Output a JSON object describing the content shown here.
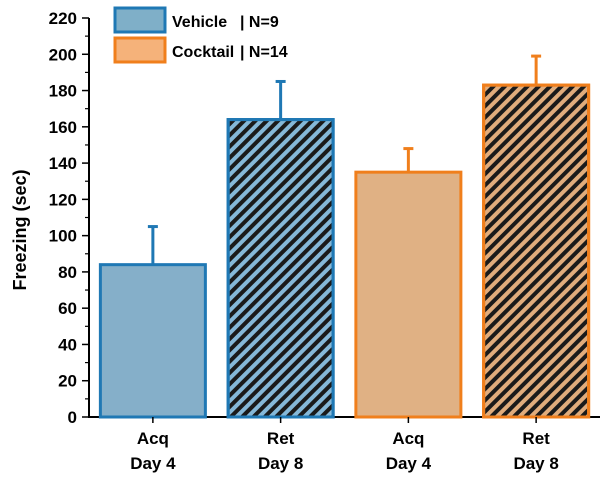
{
  "chart_data": {
    "type": "bar",
    "title": "",
    "xlabel": "",
    "ylabel": "Freezing (sec)",
    "ylim": [
      0,
      220
    ],
    "yticks": [
      0,
      20,
      40,
      60,
      80,
      100,
      120,
      140,
      160,
      180,
      200,
      220
    ],
    "grid": false,
    "legend_position": "top-left",
    "legend": [
      {
        "label": "Vehicle",
        "n_label": "N=9",
        "fill": "#7fafc8",
        "stroke": "#1f78b4"
      },
      {
        "label": "Cocktail",
        "n_label": "N=14",
        "fill": "#f5b27a",
        "stroke": "#f07f1c"
      }
    ],
    "bars": [
      {
        "label_line1": "Acq",
        "label_line2": "Day 4",
        "group": "Vehicle",
        "value": 84,
        "error": 21,
        "hatched": false,
        "fill": "#85afc9",
        "stroke": "#1f78b4"
      },
      {
        "label_line1": "Ret",
        "label_line2": "Day 8",
        "group": "Vehicle",
        "value": 164,
        "error": 21,
        "hatched": true,
        "fill": "#85b8d8",
        "stroke": "#1f78b4"
      },
      {
        "label_line1": "Acq",
        "label_line2": "Day 4",
        "group": "Cocktail",
        "value": 135,
        "error": 13,
        "hatched": false,
        "fill": "#e0b184",
        "stroke": "#f07f1c"
      },
      {
        "label_line1": "Ret",
        "label_line2": "Day 8",
        "group": "Cocktail",
        "value": 183,
        "error": 16,
        "hatched": true,
        "fill": "#e0ac7c",
        "stroke": "#f07f1c"
      }
    ]
  }
}
